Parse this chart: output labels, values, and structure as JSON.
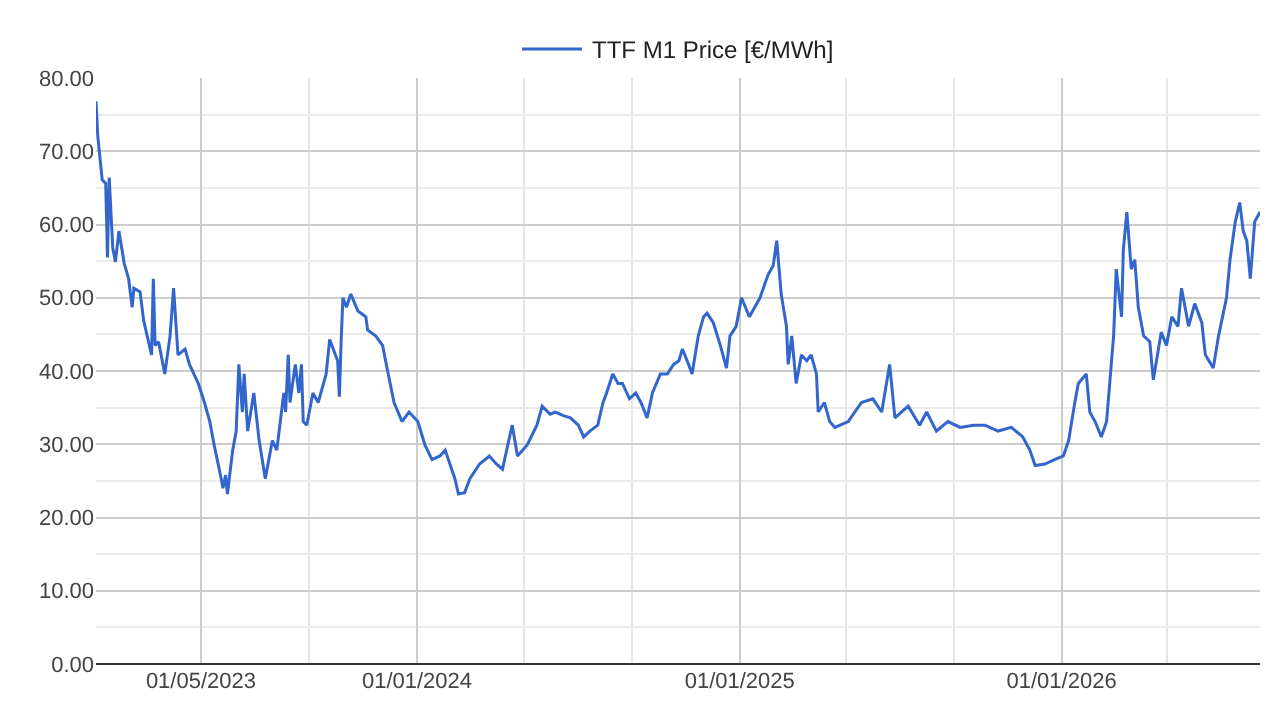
{
  "chart_data": {
    "type": "line",
    "x": [
      "2023-01-02",
      "2023-01-04",
      "2023-01-09",
      "2023-01-13",
      "2023-01-15",
      "2023-01-17",
      "2023-01-21",
      "2023-01-24",
      "2023-01-28",
      "2023-02-03",
      "2023-02-08",
      "2023-02-12",
      "2023-02-14",
      "2023-02-21",
      "2023-02-25",
      "2023-03-06",
      "2023-03-08",
      "2023-03-10",
      "2023-03-14",
      "2023-03-21",
      "2023-03-27",
      "2023-03-31",
      "2023-04-05",
      "2023-04-13",
      "2023-04-18",
      "2023-04-28",
      "2023-05-05",
      "2023-05-11",
      "2023-05-16",
      "2023-05-24",
      "2023-05-26",
      "2023-05-29",
      "2023-05-31",
      "2023-06-06",
      "2023-06-10",
      "2023-06-13",
      "2023-06-17",
      "2023-06-19",
      "2023-06-23",
      "2023-06-30",
      "2023-07-06",
      "2023-07-13",
      "2023-07-21",
      "2023-07-26",
      "2023-08-03",
      "2023-08-05",
      "2023-08-08",
      "2023-08-10",
      "2023-08-16",
      "2023-08-20",
      "2023-08-23",
      "2023-08-25",
      "2023-08-29",
      "2023-09-05",
      "2023-09-11",
      "2023-09-20",
      "2023-09-24",
      "2023-10-03",
      "2023-10-05",
      "2023-10-07",
      "2023-10-09",
      "2023-10-13",
      "2023-10-18",
      "2023-10-26",
      "2023-11-04",
      "2023-11-06",
      "2023-11-15",
      "2023-11-23",
      "2023-11-28",
      "2023-12-06",
      "2023-12-15",
      "2023-12-23",
      "2024-01-02",
      "2024-01-10",
      "2024-01-18",
      "2024-01-27",
      "2024-02-02",
      "2024-02-13",
      "2024-02-17",
      "2024-02-24",
      "2024-03-01",
      "2024-03-12",
      "2024-03-23",
      "2024-03-31",
      "2024-04-07",
      "2024-04-13",
      "2024-04-18",
      "2024-04-24",
      "2024-05-05",
      "2024-05-16",
      "2024-05-22",
      "2024-05-31",
      "2024-06-06",
      "2024-06-15",
      "2024-06-23",
      "2024-07-02",
      "2024-07-08",
      "2024-07-15",
      "2024-07-24",
      "2024-07-30",
      "2024-08-03",
      "2024-08-10",
      "2024-08-16",
      "2024-08-21",
      "2024-08-29",
      "2024-09-05",
      "2024-09-11",
      "2024-09-18",
      "2024-09-24",
      "2024-10-03",
      "2024-10-11",
      "2024-10-18",
      "2024-10-24",
      "2024-10-28",
      "2024-11-04",
      "2024-11-08",
      "2024-11-15",
      "2024-11-21",
      "2024-11-25",
      "2024-12-02",
      "2024-12-10",
      "2024-12-17",
      "2024-12-21",
      "2024-12-28",
      "2025-01-03",
      "2025-01-12",
      "2025-01-18",
      "2025-01-24",
      "2025-02-02",
      "2025-02-08",
      "2025-02-12",
      "2025-02-17",
      "2025-02-23",
      "2025-02-25",
      "2025-03-01",
      "2025-03-06",
      "2025-03-12",
      "2025-03-18",
      "2025-03-23",
      "2025-03-29",
      "2025-03-31",
      "2025-04-07",
      "2025-04-13",
      "2025-04-19",
      "2025-05-04",
      "2025-05-19",
      "2025-06-01",
      "2025-06-11",
      "2025-06-20",
      "2025-06-26",
      "2025-07-11",
      "2025-07-24",
      "2025-08-01",
      "2025-08-12",
      "2025-08-25",
      "2025-09-08",
      "2025-09-23",
      "2025-10-06",
      "2025-10-21",
      "2025-11-05",
      "2025-11-18",
      "2025-11-26",
      "2025-12-02",
      "2025-12-13",
      "2025-12-24",
      "2026-01-03",
      "2026-01-09",
      "2026-01-16",
      "2026-01-20",
      "2026-01-29",
      "2026-02-02",
      "2026-02-08",
      "2026-02-15",
      "2026-02-21",
      "2026-03-01",
      "2026-03-04",
      "2026-03-10",
      "2026-03-12",
      "2026-03-16",
      "2026-03-21",
      "2026-03-25",
      "2026-03-29",
      "2026-04-04",
      "2026-04-11",
      "2026-04-15",
      "2026-04-24",
      "2026-04-30",
      "2026-05-06",
      "2026-05-13",
      "2026-05-17",
      "2026-05-25",
      "2026-06-01",
      "2026-06-09",
      "2026-06-13",
      "2026-06-22",
      "2026-06-28",
      "2026-07-07",
      "2026-07-11",
      "2026-07-17",
      "2026-07-22",
      "2026-07-26",
      "2026-07-30",
      "2026-08-03",
      "2026-08-08",
      "2026-08-14"
    ],
    "series": [
      {
        "name": "TTF M1 Price [€/MWh]",
        "color": "#3366cc",
        "values": [
          76.8,
          72.1,
          66.1,
          65.6,
          55.5,
          66.4,
          56.8,
          54.9,
          59.1,
          54.7,
          52.6,
          48.7,
          51.3,
          50.8,
          46.9,
          42.2,
          52.6,
          43.5,
          44.0,
          39.6,
          44.8,
          51.3,
          42.2,
          43.0,
          40.9,
          38.3,
          35.7,
          33.1,
          29.9,
          25.3,
          24.0,
          25.8,
          23.2,
          29.2,
          31.8,
          40.9,
          34.4,
          39.6,
          31.8,
          37.0,
          30.5,
          25.3,
          30.5,
          29.2,
          37.0,
          34.4,
          42.2,
          35.7,
          40.9,
          37.0,
          40.9,
          33.1,
          32.6,
          37.0,
          35.7,
          39.6,
          44.3,
          41.4,
          36.5,
          44.0,
          50.0,
          48.7,
          50.5,
          48.2,
          47.4,
          45.6,
          44.8,
          43.5,
          40.4,
          35.7,
          33.1,
          34.4,
          33.1,
          29.9,
          27.9,
          28.4,
          29.2,
          25.3,
          23.2,
          23.4,
          25.3,
          27.3,
          28.4,
          27.3,
          26.6,
          29.9,
          32.6,
          28.4,
          29.9,
          32.6,
          35.2,
          34.1,
          34.4,
          33.9,
          33.6,
          32.6,
          31.0,
          31.8,
          32.6,
          35.7,
          37.0,
          39.6,
          38.3,
          38.3,
          36.2,
          37.0,
          35.7,
          33.6,
          37.0,
          39.6,
          39.6,
          40.9,
          41.4,
          43.0,
          40.9,
          39.6,
          44.8,
          47.4,
          47.9,
          46.6,
          43.5,
          40.4,
          44.8,
          46.1,
          50.0,
          47.4,
          48.7,
          50.0,
          53.1,
          54.4,
          57.8,
          50.5,
          46.1,
          40.9,
          44.8,
          38.3,
          42.2,
          41.4,
          42.2,
          39.6,
          34.4,
          35.7,
          33.1,
          32.3,
          33.1,
          35.7,
          36.2,
          34.4,
          40.9,
          33.6,
          35.2,
          32.6,
          34.4,
          31.8,
          33.1,
          32.3,
          32.6,
          32.6,
          31.8,
          32.3,
          31.0,
          29.2,
          27.1,
          27.3,
          27.9,
          28.4,
          30.5,
          35.7,
          38.3,
          39.6,
          34.4,
          33.1,
          31.0,
          33.1,
          44.8,
          53.9,
          47.4,
          56.5,
          61.7,
          53.9,
          55.2,
          48.7,
          44.8,
          44.0,
          38.8,
          45.3,
          43.5,
          47.4,
          46.1,
          51.3,
          46.1,
          49.2,
          46.6,
          42.2,
          40.4,
          44.8,
          50.0,
          55.2,
          60.4,
          63.0,
          59.1,
          57.8,
          52.6,
          60.4,
          61.7
        ]
      }
    ],
    "xlim": [
      "2023-01-02",
      "2026-08-14"
    ],
    "xticks": [
      {
        "value": "2023-05-01",
        "label": "01/05/2023"
      },
      {
        "value": "2023-09-01",
        "label": null
      },
      {
        "value": "2024-01-01",
        "label": "01/01/2024"
      },
      {
        "value": "2024-05-01",
        "label": null
      },
      {
        "value": "2024-09-01",
        "label": null
      },
      {
        "value": "2025-01-01",
        "label": "01/01/2025"
      },
      {
        "value": "2025-05-01",
        "label": null
      },
      {
        "value": "2025-09-01",
        "label": null
      },
      {
        "value": "2026-01-01",
        "label": "01/01/2026"
      },
      {
        "value": "2026-05-01",
        "label": null
      }
    ],
    "ylim": [
      0,
      80
    ],
    "yticks": [
      {
        "value": 0,
        "label": "0.00"
      },
      {
        "value": 5,
        "label": null
      },
      {
        "value": 10,
        "label": "10.00"
      },
      {
        "value": 15,
        "label": null
      },
      {
        "value": 20,
        "label": "20.00"
      },
      {
        "value": 25,
        "label": null
      },
      {
        "value": 30,
        "label": "30.00"
      },
      {
        "value": 35,
        "label": null
      },
      {
        "value": 40,
        "label": "40.00"
      },
      {
        "value": 45,
        "label": null
      },
      {
        "value": 50,
        "label": "50.00"
      },
      {
        "value": 55,
        "label": null
      },
      {
        "value": 60,
        "label": "60.00"
      },
      {
        "value": 65,
        "label": null
      },
      {
        "value": 70,
        "label": "70.00"
      },
      {
        "value": 75,
        "label": null
      },
      {
        "value": 80,
        "label": "80.00"
      }
    ],
    "grid": true,
    "legend": "top",
    "marker": "none",
    "line_style": "solid"
  }
}
